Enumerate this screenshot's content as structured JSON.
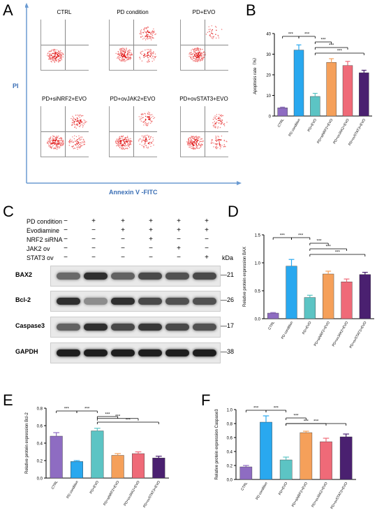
{
  "panels": {
    "A": "A",
    "B": "B",
    "C": "C",
    "D": "D",
    "E": "E",
    "F": "F"
  },
  "flow": {
    "y_axis_label": "PI",
    "x_axis_label": "Annexin V -FITC",
    "groups": [
      "CTRL",
      "PD condition",
      "PD+EVO",
      "PD+siNRF2+EVO",
      "PD+ovJAK2+EVO",
      "PD+ovSTAT3+EVO"
    ]
  },
  "western": {
    "treatments": [
      {
        "label": "PD condition",
        "signs": [
          "−",
          "+",
          "+",
          "+",
          "+",
          "+"
        ]
      },
      {
        "label": "Evodiamine",
        "signs": [
          "−",
          "−",
          "+",
          "+",
          "+",
          "+"
        ]
      },
      {
        "label": "NRF2 siRNA",
        "signs": [
          "−",
          "−",
          "−",
          "+",
          "−",
          "−"
        ]
      },
      {
        "label": "JAK2 ov",
        "signs": [
          "−",
          "−",
          "−",
          "−",
          "+",
          "−"
        ]
      },
      {
        "label": "STAT3 ov",
        "signs": [
          "−",
          "−",
          "−",
          "−",
          "−",
          "+"
        ]
      }
    ],
    "kda_label": "kDa",
    "proteins": [
      {
        "name": "BAX2",
        "kda": "—21",
        "intensity": [
          0.55,
          0.9,
          0.6,
          0.75,
          0.7,
          0.75
        ]
      },
      {
        "name": "Bcl-2",
        "kda": "—26",
        "intensity": [
          0.9,
          0.35,
          0.9,
          0.75,
          0.7,
          0.7
        ]
      },
      {
        "name": "Caspase3",
        "kda": "—17",
        "intensity": [
          0.6,
          0.9,
          0.75,
          0.85,
          0.75,
          0.7
        ]
      },
      {
        "name": "GAPDH",
        "kda": "—38",
        "intensity": [
          1,
          1,
          1,
          1,
          1,
          1
        ]
      }
    ]
  },
  "chart_data": [
    {
      "id": "B",
      "type": "bar",
      "categories": [
        "CTRL",
        "PD condition",
        "PD+EVO",
        "PD+siNRF2+EVO",
        "PD+ovJAK2+EVO",
        "PD+ovSTAT3+EVO"
      ],
      "values": [
        4,
        32,
        9.5,
        26,
        24.5,
        21
      ],
      "errors": [
        0.3,
        2.5,
        1.5,
        1.8,
        2.0,
        1.2
      ],
      "colors": [
        "#8e6cc2",
        "#29a8ef",
        "#5cc4c4",
        "#f5a05a",
        "#ef6a78",
        "#4a2070"
      ],
      "ylabel": "Apoptosis rate（%）",
      "ylim": [
        0,
        40
      ],
      "yticks": [
        "0",
        "10",
        "20",
        "30",
        "40"
      ],
      "significance": [
        {
          "from": 0,
          "to": 1,
          "label": "***"
        },
        {
          "from": 1,
          "to": 2,
          "label": "***"
        },
        {
          "from": 2,
          "to": 3,
          "label": "***"
        },
        {
          "from": 2,
          "to": 4,
          "label": "***"
        },
        {
          "from": 2,
          "to": 5,
          "label": "***"
        }
      ]
    },
    {
      "id": "D",
      "type": "bar",
      "categories": [
        "CTRL",
        "PD condition",
        "PD+EVO",
        "PD+siNRF2+EVO",
        "PD+ovJAK2+EVO",
        "PD+ovSTAT3+EVO"
      ],
      "values": [
        0.1,
        0.94,
        0.38,
        0.8,
        0.66,
        0.79
      ],
      "errors": [
        0.01,
        0.12,
        0.04,
        0.05,
        0.05,
        0.04
      ],
      "colors": [
        "#8e6cc2",
        "#29a8ef",
        "#5cc4c4",
        "#f5a05a",
        "#ef6a78",
        "#4a2070"
      ],
      "ylabel": "Relative protein expression BAX",
      "ylim": [
        0,
        1.5
      ],
      "yticks": [
        "0.0",
        "0.5",
        "1.0",
        "1.5"
      ],
      "significance": [
        {
          "from": 0,
          "to": 1,
          "label": "***"
        },
        {
          "from": 1,
          "to": 2,
          "label": "***"
        },
        {
          "from": 2,
          "to": 3,
          "label": "***"
        },
        {
          "from": 2,
          "to": 4,
          "label": "***"
        },
        {
          "from": 2,
          "to": 5,
          "label": "***"
        }
      ]
    },
    {
      "id": "E",
      "type": "bar",
      "categories": [
        "CTRL",
        "PD condition",
        "PD+EVO",
        "PD+siNRF2+EVO",
        "PD+ovJAK2+EVO",
        "PD+ovSTAT3+EVO"
      ],
      "values": [
        0.48,
        0.19,
        0.54,
        0.26,
        0.28,
        0.23
      ],
      "errors": [
        0.04,
        0.01,
        0.03,
        0.02,
        0.02,
        0.02
      ],
      "colors": [
        "#8e6cc2",
        "#29a8ef",
        "#5cc4c4",
        "#f5a05a",
        "#ef6a78",
        "#4a2070"
      ],
      "ylabel": "Relative protein expression Bcl-2",
      "ylim": [
        0,
        0.8
      ],
      "yticks": [
        "0.0",
        "0.2",
        "0.4",
        "0.6",
        "0.8"
      ],
      "significance": [
        {
          "from": 0,
          "to": 1,
          "label": "***"
        },
        {
          "from": 1,
          "to": 2,
          "label": "***"
        },
        {
          "from": 2,
          "to": 3,
          "label": "***"
        },
        {
          "from": 2,
          "to": 4,
          "label": "***"
        },
        {
          "from": 2,
          "to": 5,
          "label": "***"
        }
      ]
    },
    {
      "id": "F",
      "type": "bar",
      "categories": [
        "CTRL",
        "PD condition",
        "PD+EVO",
        "PD+siNRF2+EVO",
        "PD+ovJAK2+EVO",
        "PD+ovSTAT3+EVO"
      ],
      "values": [
        0.18,
        0.82,
        0.28,
        0.67,
        0.54,
        0.61
      ],
      "errors": [
        0.02,
        0.09,
        0.04,
        0.02,
        0.05,
        0.04
      ],
      "colors": [
        "#8e6cc2",
        "#29a8ef",
        "#5cc4c4",
        "#f5a05a",
        "#ef6a78",
        "#4a2070"
      ],
      "ylabel": "Relative protein expression Caspase3",
      "ylim": [
        0,
        1.0
      ],
      "yticks": [
        "0.0",
        "0.2",
        "0.4",
        "0.6",
        "0.8",
        "1.0"
      ],
      "significance": [
        {
          "from": 0,
          "to": 1,
          "label": "***"
        },
        {
          "from": 1,
          "to": 2,
          "label": "***"
        },
        {
          "from": 2,
          "to": 3,
          "label": "***"
        },
        {
          "from": 2,
          "to": 4,
          "label": "***"
        },
        {
          "from": 2,
          "to": 5,
          "label": "***"
        }
      ]
    }
  ]
}
